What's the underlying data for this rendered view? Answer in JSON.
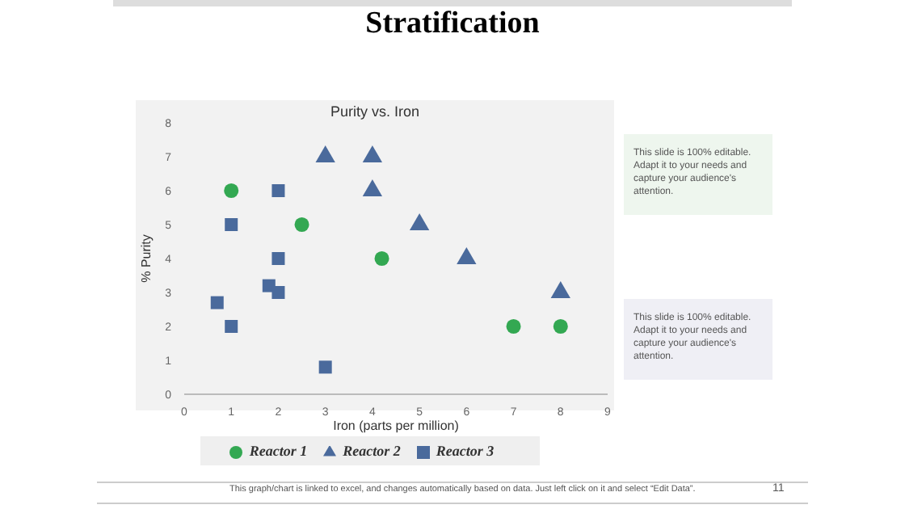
{
  "chart_data": {
    "type": "scatter",
    "title": "Stratification",
    "subtitle": "Purity vs. Iron",
    "xlabel": "Iron (parts per million)",
    "ylabel": "% Purity",
    "xlim": [
      0,
      9
    ],
    "xticks": [
      0,
      1,
      2,
      3,
      4,
      5,
      6,
      7,
      8,
      9
    ],
    "ylim": [
      0,
      8
    ],
    "yticks": [
      0,
      1,
      2,
      3,
      4,
      5,
      6,
      7,
      8
    ],
    "grid": false,
    "legend": "bottom",
    "series": [
      {
        "name": "Reactor 1",
        "color": "#33a852",
        "marker": "circle",
        "x": [
          1,
          2.5,
          4.2,
          7,
          8
        ],
        "values": [
          6,
          5,
          4,
          2,
          2
        ]
      },
      {
        "name": "Reactor 2",
        "color": "#4a6a9c",
        "marker": "triangle",
        "x": [
          3,
          4,
          4,
          5,
          6,
          8
        ],
        "values": [
          7,
          7,
          6,
          5,
          4,
          3
        ]
      },
      {
        "name": "Reactor 3",
        "color": "#4a6a9c",
        "marker": "square",
        "x": [
          0.7,
          1,
          1,
          1.8,
          2,
          2,
          2,
          3
        ],
        "values": [
          2.7,
          5,
          2,
          3.2,
          6,
          4,
          3,
          0.8
        ]
      }
    ],
    "annotations": [
      "This slide is 100% editable. Adapt it to your needs and capture your audience's attention.",
      "This slide is 100% editable. Adapt it to your needs and capture your audience's attention.",
      "This graph/chart is linked to excel, and changes automatically based on data. Just left click on it and select “Edit Data”.",
      "11"
    ]
  }
}
